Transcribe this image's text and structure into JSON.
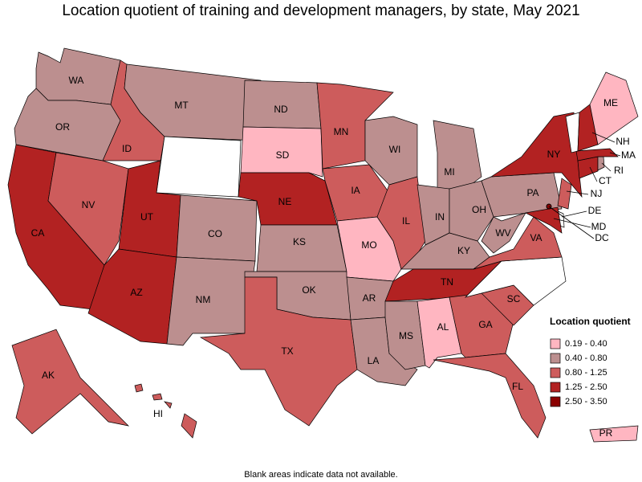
{
  "title": "Location quotient of training and development managers, by state, May 2021",
  "footnote": "Blank areas indicate data not available.",
  "legend": {
    "title": "Location quotient",
    "items": [
      {
        "label": "0.19 - 0.40",
        "color": "#ffb6c1"
      },
      {
        "label": "0.40 - 0.80",
        "color": "#bc8f8f"
      },
      {
        "label": "0.80 - 1.25",
        "color": "#cd5c5c"
      },
      {
        "label": "1.25 - 2.50",
        "color": "#b22222"
      },
      {
        "label": "2.50 - 3.50",
        "color": "#8b0000"
      }
    ]
  },
  "states": [
    {
      "abbr": "WA",
      "color": "#bc8f8f"
    },
    {
      "abbr": "OR",
      "color": "#bc8f8f"
    },
    {
      "abbr": "CA",
      "color": "#b22222"
    },
    {
      "abbr": "NV",
      "color": "#cd5c5c"
    },
    {
      "abbr": "ID",
      "color": "#cd5c5c"
    },
    {
      "abbr": "MT",
      "color": "#bc8f8f"
    },
    {
      "color": "#ffffff"
    },
    {
      "abbr": "UT",
      "color": "#b22222"
    },
    {
      "abbr": "AZ",
      "color": "#b22222"
    },
    {
      "abbr": "CO",
      "color": "#bc8f8f"
    },
    {
      "abbr": "NM",
      "color": "#bc8f8f"
    },
    {
      "abbr": "ND",
      "color": "#bc8f8f"
    },
    {
      "abbr": "SD",
      "color": "#ffb6c1"
    },
    {
      "abbr": "NE",
      "color": "#b22222"
    },
    {
      "abbr": "KS",
      "color": "#bc8f8f"
    },
    {
      "abbr": "OK",
      "color": "#bc8f8f"
    },
    {
      "abbr": "TX",
      "color": "#cd5c5c"
    },
    {
      "abbr": "MN",
      "color": "#cd5c5c"
    },
    {
      "abbr": "IA",
      "color": "#cd5c5c"
    },
    {
      "abbr": "MO",
      "color": "#ffb6c1"
    },
    {
      "abbr": "AR",
      "color": "#bc8f8f"
    },
    {
      "abbr": "LA",
      "color": "#bc8f8f"
    },
    {
      "abbr": "WI",
      "color": "#bc8f8f"
    },
    {
      "abbr": "IL",
      "color": "#cd5c5c"
    },
    {
      "abbr": "MI",
      "color": "#bc8f8f"
    },
    {
      "abbr": "IN",
      "color": "#bc8f8f"
    },
    {
      "abbr": "OH",
      "color": "#bc8f8f"
    },
    {
      "abbr": "KY",
      "color": "#bc8f8f"
    },
    {
      "abbr": "TN",
      "color": "#b22222"
    },
    {
      "abbr": "MS",
      "color": "#bc8f8f"
    },
    {
      "abbr": "AL",
      "color": "#ffb6c1"
    },
    {
      "abbr": "GA",
      "color": "#cd5c5c"
    },
    {
      "abbr": "FL",
      "color": "#cd5c5c"
    },
    {
      "abbr": "SC",
      "color": "#cd5c5c"
    },
    {
      "color": "#ffffff"
    },
    {
      "abbr": "VA",
      "color": "#cd5c5c"
    },
    {
      "abbr": "WV",
      "color": "#bc8f8f"
    },
    {
      "abbr": "PA",
      "color": "#bc8f8f"
    },
    {
      "abbr": "NY",
      "color": "#b22222"
    },
    {
      "abbr": "NJ",
      "color": "#cd5c5c"
    },
    {
      "abbr": "DE",
      "color": "#ffffff"
    },
    {
      "abbr": "MD",
      "color": "#b22222"
    },
    {
      "abbr": "DC",
      "color": "#8b0000"
    },
    {
      "abbr": "CT",
      "color": "#b22222"
    },
    {
      "abbr": "RI",
      "color": "#bc8f8f"
    },
    {
      "abbr": "MA",
      "color": "#b22222"
    },
    {
      "color": "#ffffff"
    },
    {
      "abbr": "NH",
      "color": "#b22222"
    },
    {
      "abbr": "ME",
      "color": "#ffb6c1"
    },
    {
      "abbr": "AK",
      "color": "#cd5c5c"
    },
    {
      "abbr": "HI",
      "color": "#cd5c5c"
    },
    {
      "abbr": "PR",
      "color": "#ffb6c1"
    }
  ]
}
